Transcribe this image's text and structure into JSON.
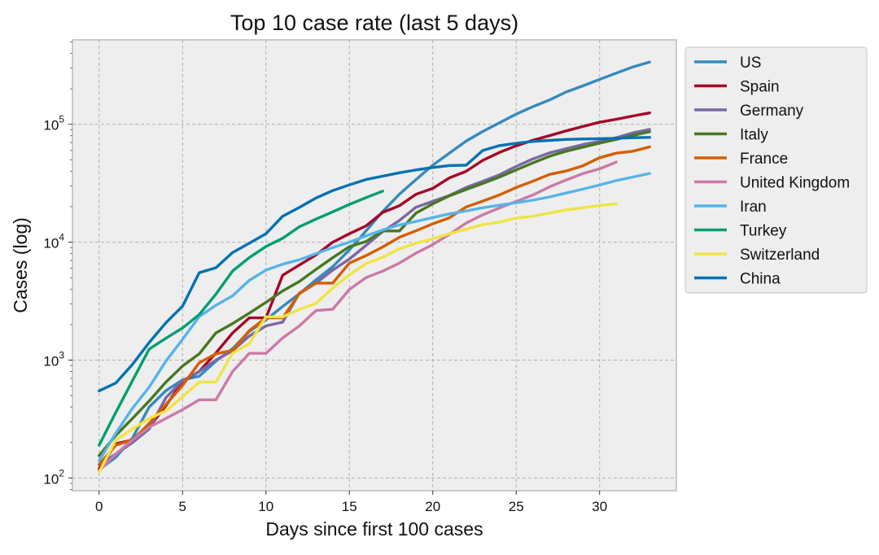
{
  "chart_data": {
    "type": "line",
    "title": "Top 10 case rate (last 5 days)",
    "xlabel": "Days since first 100 cases",
    "ylabel": "Cases (log)",
    "xlim": [
      -1.6,
      34.6
    ],
    "ylim": [
      78,
      520000
    ],
    "yscale": "log",
    "x_ticks": [
      0,
      5,
      10,
      15,
      20,
      25,
      30
    ],
    "y_ticks": [
      {
        "value": 100,
        "base": "10",
        "exp": "2"
      },
      {
        "value": 1000,
        "base": "10",
        "exp": "3"
      },
      {
        "value": 10000,
        "base": "10",
        "exp": "4"
      },
      {
        "value": 100000,
        "base": "10",
        "exp": "5"
      }
    ],
    "grid": true,
    "legend_position": "outside-right",
    "series": [
      {
        "name": "US",
        "color": "#348abd",
        "x": [
          0,
          1,
          2,
          3,
          4,
          5,
          6,
          7,
          8,
          9,
          10,
          11,
          12,
          13,
          14,
          15,
          16,
          17,
          18,
          19,
          20,
          21,
          22,
          23,
          24,
          25,
          26,
          27,
          28,
          29,
          30,
          31,
          32,
          33
        ],
        "y": [
          118,
          150,
          218,
          400,
          550,
          680,
          730,
          980,
          1250,
          1750,
          2200,
          2850,
          3650,
          4800,
          6200,
          8600,
          12500,
          18200,
          25500,
          34000,
          45000,
          57000,
          72000,
          87000,
          103000,
          122000,
          141000,
          161000,
          188000,
          212000,
          240000,
          272000,
          307000,
          337000
        ]
      },
      {
        "name": "Spain",
        "color": "#a60628",
        "x": [
          0,
          1,
          2,
          3,
          4,
          5,
          6,
          7,
          8,
          9,
          10,
          11,
          12,
          13,
          14,
          15,
          16,
          17,
          18,
          19,
          20,
          21,
          22,
          23,
          24,
          25,
          26,
          27,
          28,
          29,
          30,
          31,
          32,
          33
        ],
        "y": [
          120,
          195,
          210,
          270,
          410,
          660,
          800,
          1150,
          1700,
          2280,
          2280,
          5250,
          6400,
          7800,
          10000,
          11800,
          13750,
          17900,
          20400,
          25500,
          28600,
          35100,
          39900,
          49500,
          57700,
          65700,
          73200,
          80100,
          87900,
          95900,
          104100,
          110300,
          117700,
          125000
        ]
      },
      {
        "name": "Germany",
        "color": "#7a68a6",
        "x": [
          0,
          1,
          2,
          3,
          4,
          5,
          6,
          7,
          8,
          9,
          10,
          11,
          12,
          13,
          14,
          15,
          16,
          17,
          18,
          19,
          20,
          21,
          22,
          23,
          24,
          25,
          26,
          27,
          28,
          29,
          30,
          31,
          32,
          33
        ],
        "y": [
          130,
          160,
          200,
          260,
          480,
          670,
          800,
          1000,
          1200,
          1600,
          1950,
          2100,
          3700,
          4500,
          5800,
          7200,
          9400,
          12300,
          15300,
          19800,
          22200,
          24900,
          29100,
          32900,
          37300,
          43900,
          50800,
          57300,
          62100,
          67400,
          71700,
          77000,
          84700,
          90400
        ]
      },
      {
        "name": "Italy",
        "color": "#467821",
        "x": [
          0,
          1,
          2,
          3,
          4,
          5,
          6,
          7,
          8,
          9,
          10,
          11,
          12,
          13,
          14,
          15,
          16,
          17,
          18,
          19,
          20,
          21,
          22,
          23,
          24,
          25,
          26,
          27,
          28,
          29,
          30,
          31,
          32,
          33
        ],
        "y": [
          155,
          230,
          320,
          450,
          650,
          890,
          1130,
          1700,
          2040,
          2500,
          3090,
          3860,
          4640,
          5880,
          7380,
          9170,
          10150,
          12460,
          12460,
          17660,
          21160,
          24750,
          27980,
          31500,
          35710,
          41030,
          47020,
          53580,
          59140,
          63930,
          69180,
          74390,
          80590,
          86500
        ]
      },
      {
        "name": "France",
        "color": "#d55e00",
        "x": [
          0,
          1,
          2,
          3,
          4,
          5,
          6,
          7,
          8,
          9,
          10,
          11,
          12,
          13,
          14,
          15,
          16,
          17,
          18,
          19,
          20,
          21,
          22,
          23,
          24,
          25,
          26,
          27,
          28,
          29,
          30,
          31,
          32,
          33
        ],
        "y": [
          130,
          190,
          210,
          290,
          420,
          610,
          950,
          1130,
          1210,
          1780,
          2280,
          2280,
          3660,
          4500,
          4500,
          6650,
          7700,
          9100,
          11000,
          12500,
          14300,
          16100,
          19900,
          22300,
          25200,
          29100,
          32900,
          37600,
          40200,
          44500,
          52100,
          56900,
          59100,
          64300
        ]
      },
      {
        "name": "United Kingdom",
        "color": "#cc79a7",
        "x": [
          0,
          1,
          2,
          3,
          4,
          5,
          6,
          7,
          8,
          9,
          10,
          11,
          12,
          13,
          14,
          15,
          16,
          17,
          18,
          19,
          20,
          21,
          22,
          23,
          24,
          25,
          26,
          27,
          28,
          29,
          30,
          31
        ],
        "y": [
          115,
          160,
          210,
          270,
          320,
          380,
          460,
          460,
          800,
          1140,
          1140,
          1540,
          1950,
          2630,
          2700,
          3980,
          5010,
          5680,
          6650,
          8080,
          9530,
          11660,
          14540,
          17090,
          19520,
          22140,
          25150,
          29470,
          33720,
          38170,
          41900,
          47810
        ]
      },
      {
        "name": "Iran",
        "color": "#56b4e9",
        "x": [
          0,
          1,
          2,
          3,
          4,
          5,
          6,
          7,
          8,
          9,
          10,
          11,
          12,
          13,
          14,
          15,
          16,
          17,
          18,
          19,
          20,
          21,
          22,
          23,
          24,
          25,
          26,
          27,
          28,
          29,
          30,
          31,
          32,
          33
        ],
        "y": [
          140,
          240,
          390,
          590,
          980,
          1500,
          2340,
          2920,
          3510,
          4750,
          5800,
          6500,
          7100,
          8000,
          9000,
          10000,
          11300,
          12700,
          14000,
          15000,
          16200,
          17400,
          18400,
          19600,
          20600,
          21600,
          22700,
          24200,
          26100,
          28200,
          30500,
          33300,
          35700,
          38300
        ]
      },
      {
        "name": "Turkey",
        "color": "#009e73",
        "x": [
          0,
          1,
          2,
          3,
          4,
          5,
          6,
          7,
          8,
          9,
          10,
          11,
          12,
          13,
          14,
          15,
          16,
          17
        ],
        "y": [
          190,
          360,
          670,
          1240,
          1530,
          1870,
          2430,
          3630,
          5700,
          7400,
          9200,
          10800,
          13500,
          15700,
          18100,
          20900,
          23900,
          27100
        ]
      },
      {
        "name": "Switzerland",
        "color": "#f0e442",
        "x": [
          0,
          1,
          2,
          3,
          4,
          5,
          6,
          7,
          8,
          9,
          10,
          11,
          12,
          13,
          14,
          15,
          16,
          17,
          18,
          19,
          20,
          21,
          22,
          23,
          24,
          25,
          26,
          27,
          28,
          29,
          30,
          31
        ],
        "y": [
          112,
          210,
          260,
          320,
          370,
          490,
          650,
          650,
          1140,
          1380,
          2330,
          2330,
          2690,
          3020,
          4080,
          5290,
          6580,
          7450,
          8800,
          9800,
          10700,
          11800,
          12900,
          14100,
          14800,
          16000,
          16600,
          17700,
          18800,
          19600,
          20500,
          21100
        ]
      },
      {
        "name": "China",
        "color": "#0072b2",
        "x": [
          0,
          1,
          2,
          3,
          4,
          5,
          6,
          7,
          8,
          9,
          10,
          11,
          12,
          13,
          14,
          15,
          16,
          17,
          18,
          19,
          20,
          21,
          22,
          23,
          24,
          25,
          26,
          27,
          28,
          29,
          30,
          31,
          32,
          33
        ],
        "y": [
          548,
          640,
          920,
          1410,
          2070,
          2870,
          5510,
          6070,
          8170,
          9800,
          11800,
          16600,
          19700,
          23700,
          27400,
          30600,
          34000,
          36300,
          38800,
          41000,
          43000,
          44700,
          45000,
          60000,
          66000,
          69000,
          71500,
          73000,
          74500,
          75000,
          75500,
          76000,
          77000,
          77500
        ]
      }
    ]
  }
}
